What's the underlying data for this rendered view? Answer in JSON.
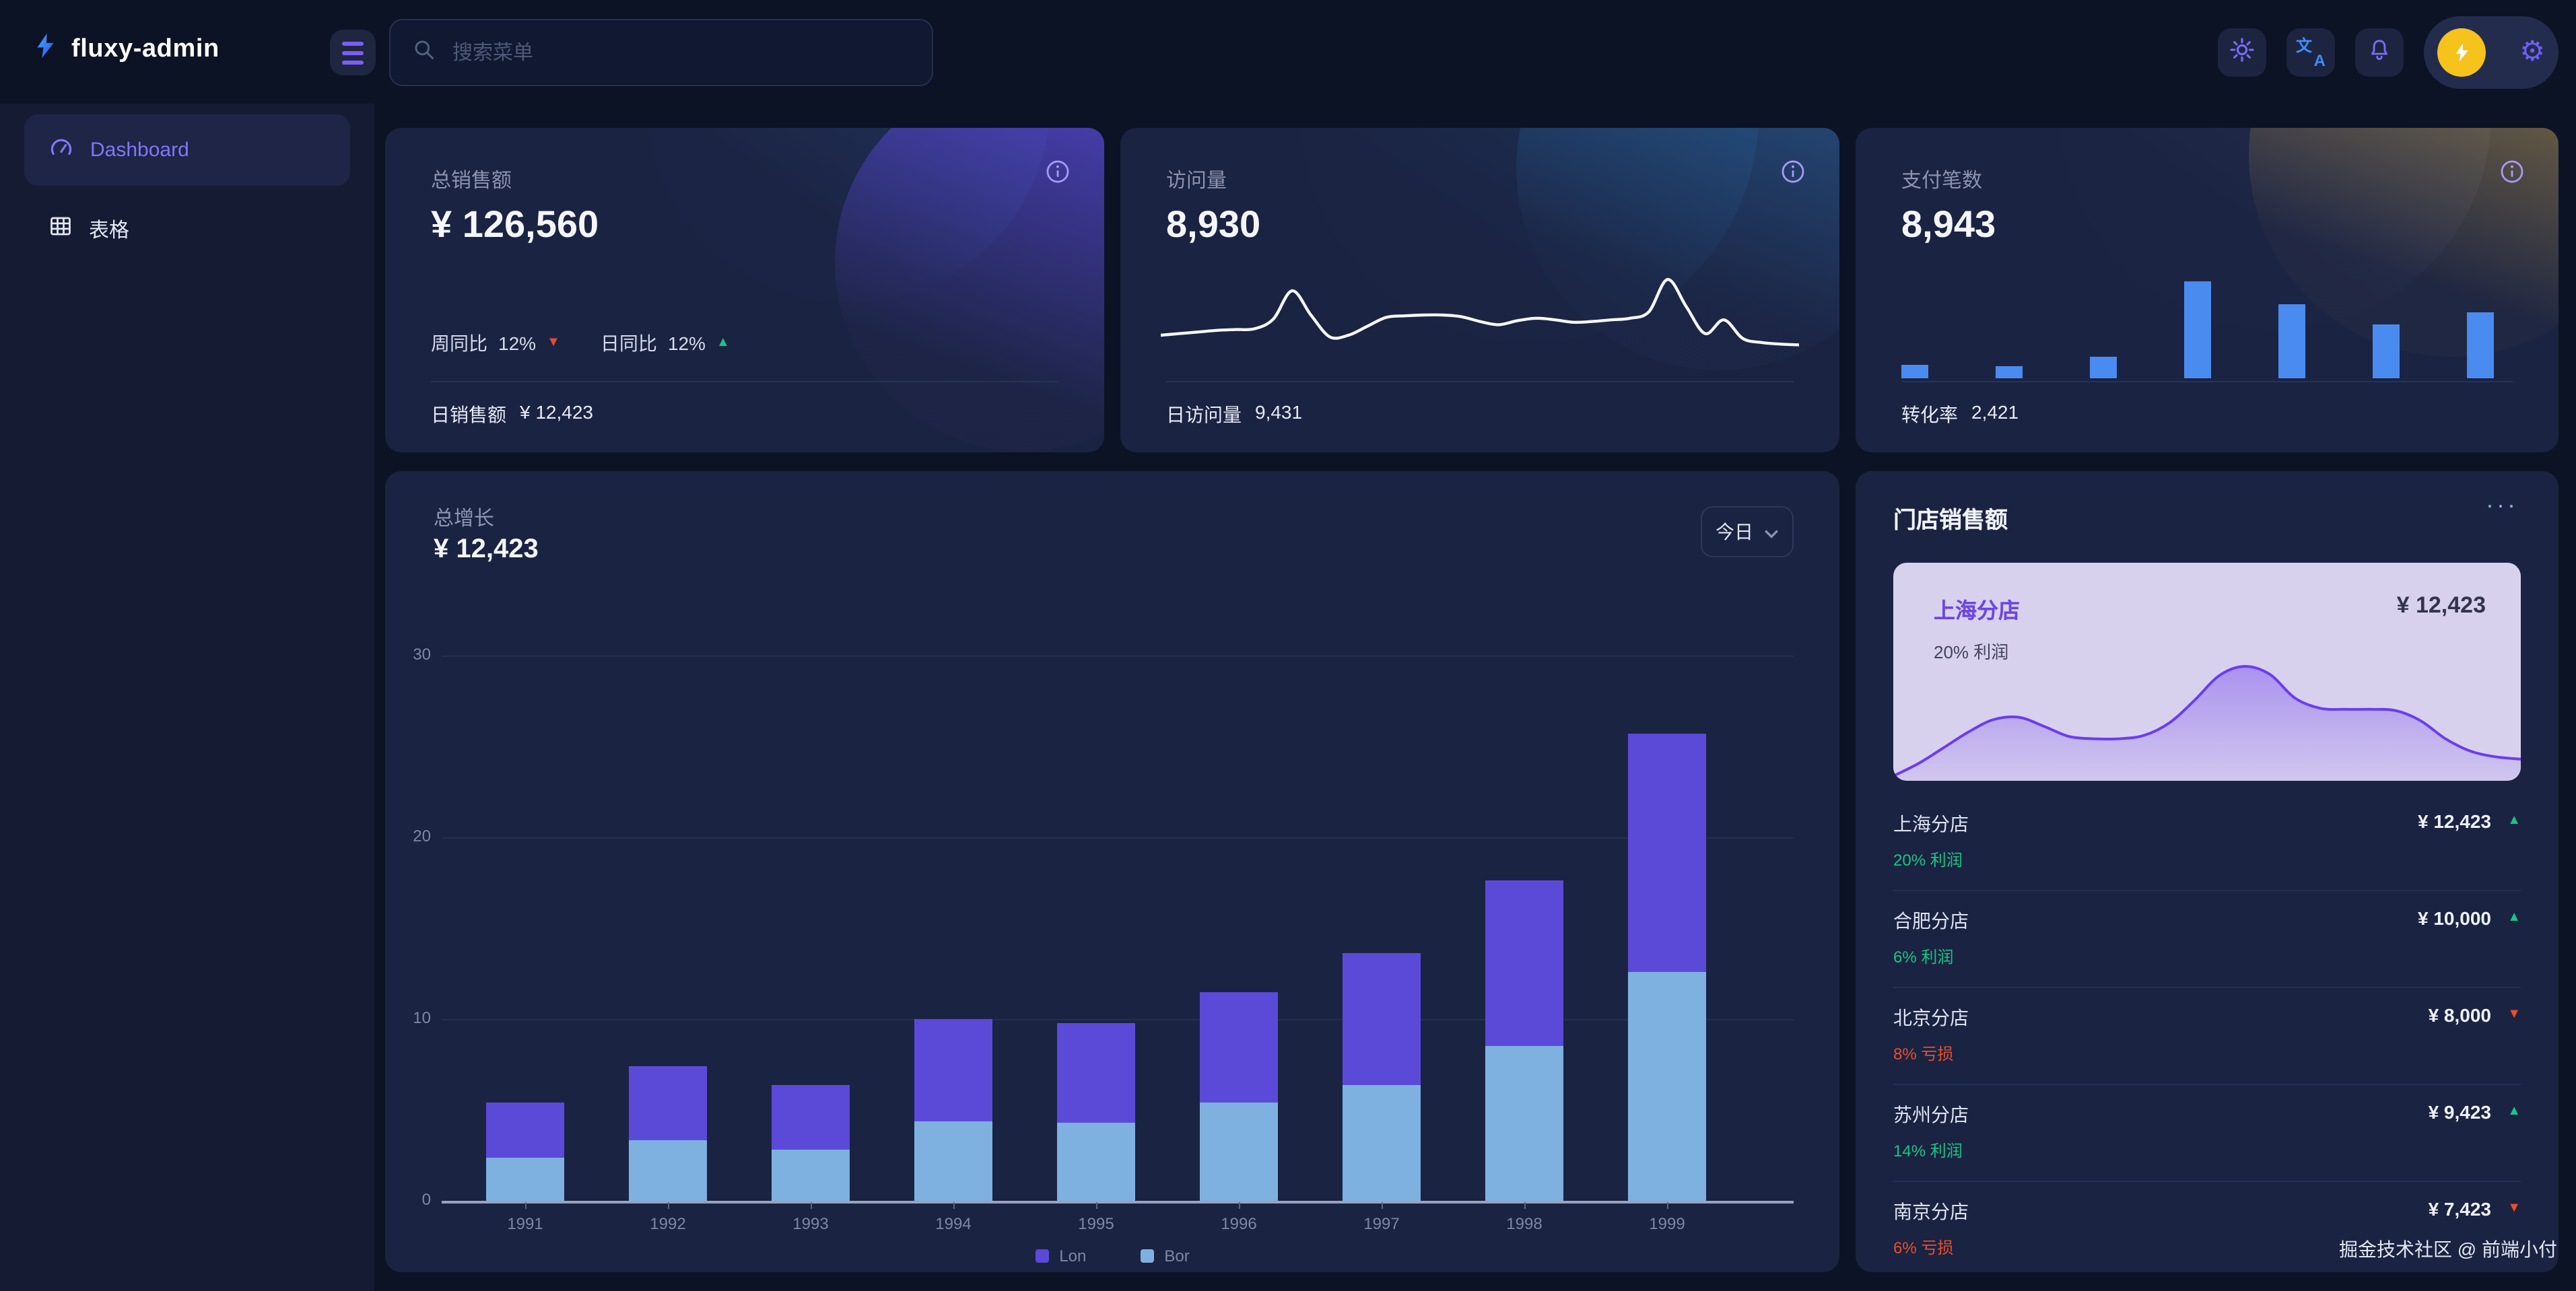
{
  "app": {
    "title": "fluxy-admin"
  },
  "sidebar": {
    "items": [
      {
        "label": "Dashboard",
        "active": true
      },
      {
        "label": "表格",
        "active": false
      }
    ]
  },
  "topbar": {
    "search_placeholder": "搜索菜单",
    "icons": [
      "sun-theme",
      "translate",
      "bell",
      "avatar-lightning",
      "gear"
    ]
  },
  "stat_cards": [
    {
      "label": "总销售额",
      "value": "¥ 126,560",
      "stats": [
        {
          "label": "周同比",
          "value": "12%",
          "trend": "down"
        },
        {
          "label": "日同比",
          "value": "12%",
          "trend": "up"
        }
      ],
      "footer_label": "日销售额",
      "footer_value": "¥ 12,423"
    },
    {
      "label": "访问量",
      "value": "8,930",
      "sparkline": [
        2.5,
        2.7,
        2.9,
        3.1,
        3.2,
        3.3,
        4.5,
        8.0,
        5.0,
        2.3,
        2.5,
        3.6,
        4.7,
        4.9,
        5.0,
        5.0,
        4.8,
        4.2,
        3.8,
        4.3,
        4.6,
        4.4,
        4.1,
        4.2,
        4.4,
        4.6,
        5.4,
        9.4,
        6.0,
        2.7,
        4.4,
        2.1,
        1.6,
        1.4,
        1.3
      ],
      "footer_label": "日访问量",
      "footer_value": "9,431"
    },
    {
      "label": "支付笔数",
      "value": "8,943",
      "bars": [
        1.3,
        1.2,
        2.1,
        9.5,
        7.3,
        5.3,
        6.5
      ],
      "bar_color": "#4a8bf0",
      "footer_label": "转化率",
      "footer_value": "2,421"
    }
  ],
  "chart_data": {
    "type": "bar",
    "stacked": true,
    "title": "总增长",
    "amount": "¥ 12,423",
    "period": "今日",
    "categories": [
      "1991",
      "1992",
      "1993",
      "1994",
      "1995",
      "1996",
      "1997",
      "1998",
      "1999"
    ],
    "series": [
      {
        "name": "Lon",
        "color": "#5b4ad8",
        "values": [
          3.0,
          4.1,
          3.6,
          5.6,
          5.5,
          6.1,
          7.2,
          9.1,
          13.1
        ]
      },
      {
        "name": "Bor",
        "color": "#7fb1e0",
        "values": [
          2.4,
          3.3,
          2.8,
          4.4,
          4.3,
          5.4,
          6.4,
          8.5,
          12.6
        ]
      }
    ],
    "bottom_series": "Bor",
    "ylim": [
      0,
      30
    ],
    "yticks": [
      0,
      10,
      20,
      30
    ],
    "grid": true,
    "legend_position": "bottom"
  },
  "store_panel": {
    "title": "门店销售额",
    "more": "···",
    "featured": {
      "name": "上海分店",
      "value": "¥ 12,423",
      "sub": "20% 利润",
      "area": [
        0.3,
        1.4,
        2.8,
        4.2,
        5.3,
        5.5,
        4.7,
        3.8,
        3.6,
        3.6,
        3.9,
        5.0,
        7.0,
        9.2,
        10.0,
        9.3,
        7.2,
        6.3,
        6.2,
        6.2,
        6.1,
        5.2,
        3.6,
        2.5,
        2.0,
        1.8
      ],
      "area_stroke": "#6a3df2"
    },
    "stores": [
      {
        "name": "上海分店",
        "value": "¥ 12,423",
        "trend": "up",
        "sub": "20% 利润"
      },
      {
        "name": "合肥分店",
        "value": "¥ 10,000",
        "trend": "up",
        "sub": "6% 利润"
      },
      {
        "name": "北京分店",
        "value": "¥ 8,000",
        "trend": "down",
        "sub": "8% 亏损"
      },
      {
        "name": "苏州分店",
        "value": "¥ 9,423",
        "trend": "up",
        "sub": "14% 利润"
      },
      {
        "name": "南京分店",
        "value": "¥ 7,423",
        "trend": "down",
        "sub": "6% 亏损"
      }
    ]
  },
  "footer": {
    "credit": "掘金技术社区 @ 前端小付"
  },
  "colors": {
    "accent_purple": "#7b6cf6",
    "up_green": "#16c784",
    "down_red": "#f04438",
    "loss_orange": "#e8502a",
    "avatar_yellow": "#f6c21c"
  },
  "glyphs": {
    "up": "▲",
    "down": "▼",
    "gear": "⚙",
    "more": "···"
  }
}
